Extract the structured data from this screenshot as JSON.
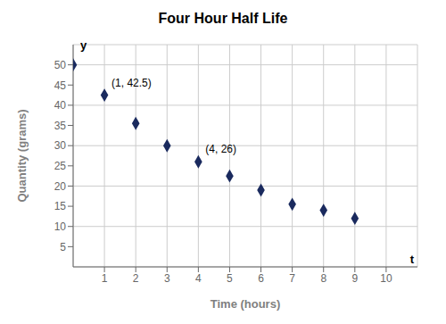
{
  "chart_data": {
    "type": "scatter",
    "title": "Four Hour Half Life",
    "x_label": "Time (hours)",
    "y_label": "Quantity (grams)",
    "x_end_label": "t",
    "y_end_label": "y",
    "x": [
      0,
      1,
      2,
      3,
      4,
      5,
      6,
      7,
      8,
      9
    ],
    "values": [
      50,
      42.5,
      35.5,
      30,
      26,
      22.5,
      19,
      15.5,
      14,
      12
    ],
    "color": "#1a2a5e",
    "marker": "diamond",
    "annotations": [
      {
        "x": 1,
        "y": 42.5,
        "text": "(1, 42.5)"
      },
      {
        "x": 4,
        "y": 26,
        "text": "(4, 26)"
      }
    ],
    "xlim": [
      0,
      11
    ],
    "ylim": [
      0,
      55
    ],
    "xticks": [
      1,
      2,
      3,
      4,
      5,
      6,
      7,
      8,
      9,
      10
    ],
    "yticks": [
      5,
      10,
      15,
      20,
      25,
      30,
      35,
      40,
      45,
      50
    ],
    "grid": true
  }
}
